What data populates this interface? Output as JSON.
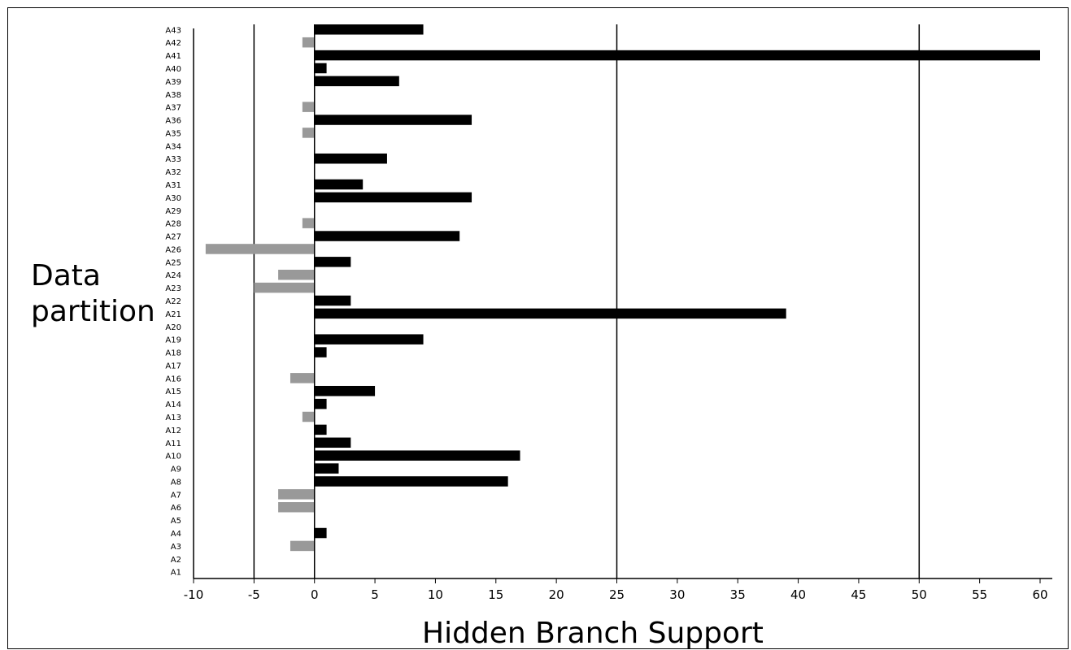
{
  "chart_data": {
    "type": "bar",
    "orientation": "horizontal",
    "title": "",
    "xlabel": "Hidden Branch Support",
    "ylabel": "Data\npartition",
    "xlim": [
      -10,
      61
    ],
    "xticks": [
      -10,
      -5,
      0,
      5,
      10,
      15,
      20,
      25,
      30,
      35,
      40,
      45,
      50,
      55,
      60
    ],
    "gridlines_x": [
      -5,
      25,
      50
    ],
    "grid": "vertical lines at -5, 25, 50",
    "legend": "none",
    "colors": {
      "positive": "#000000",
      "negative": "#999999"
    },
    "categories": [
      "A1",
      "A2",
      "A3",
      "A4",
      "A5",
      "A6",
      "A7",
      "A8",
      "A9",
      "A10",
      "A11",
      "A12",
      "A13",
      "A14",
      "A15",
      "A16",
      "A17",
      "A18",
      "A19",
      "A20",
      "A21",
      "A22",
      "A23",
      "A24",
      "A25",
      "A26",
      "A27",
      "A28",
      "A29",
      "A30",
      "A31",
      "A32",
      "A33",
      "A34",
      "A35",
      "A36",
      "A37",
      "A38",
      "A39",
      "A40",
      "A41",
      "A42",
      "A43"
    ],
    "values": [
      0,
      0,
      -2,
      1,
      0,
      -3,
      -3,
      16,
      2,
      17,
      3,
      1,
      -1,
      1,
      5,
      -2,
      0,
      1,
      9,
      0,
      39,
      3,
      -5,
      -3,
      3,
      -9,
      12,
      -1,
      0,
      13,
      4,
      0,
      6,
      0,
      -1,
      13,
      -1,
      0,
      7,
      1,
      60,
      -1,
      9
    ]
  }
}
